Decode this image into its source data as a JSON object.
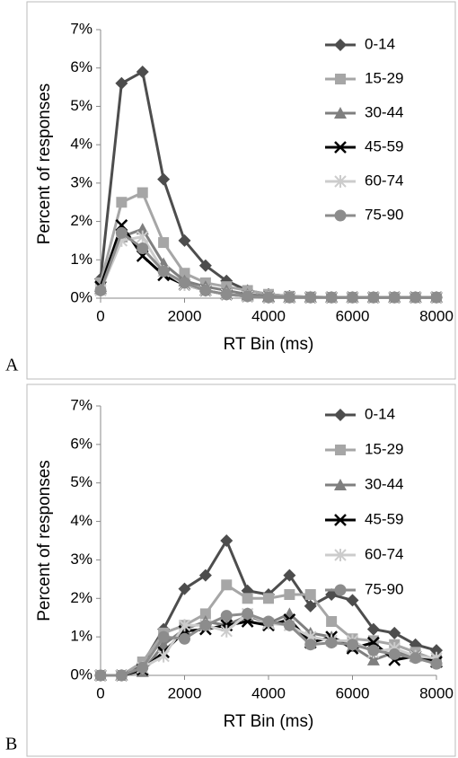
{
  "chart_data": [
    {
      "type": "line",
      "panel_label": "A",
      "x_label": "RT Bin (ms)",
      "y_label": "Percent of responses",
      "x": [
        0,
        500,
        1000,
        1500,
        2000,
        2500,
        3000,
        3500,
        4000,
        4500,
        5000,
        5500,
        6000,
        6500,
        7000,
        7500,
        8000
      ],
      "xlim": [
        0,
        8000
      ],
      "xticks": [
        0,
        2000,
        4000,
        6000,
        8000
      ],
      "ylim": [
        0,
        7
      ],
      "yticks": [
        {
          "value": 0,
          "label": "0%"
        },
        {
          "value": 1,
          "label": "1%"
        },
        {
          "value": 2,
          "label": "2%"
        },
        {
          "value": 3,
          "label": "3%"
        },
        {
          "value": 4,
          "label": "4%"
        },
        {
          "value": 5,
          "label": "5%"
        },
        {
          "value": 6,
          "label": "6%"
        },
        {
          "value": 7,
          "label": "7%"
        }
      ],
      "legend": "upper right",
      "series": [
        {
          "name": "0-14",
          "color": "#4d4d4d",
          "marker": "diamond",
          "values": [
            0.5,
            5.6,
            5.9,
            3.1,
            1.5,
            0.85,
            0.45,
            0.2,
            0.1,
            0.05,
            0.03,
            0.02,
            0.02,
            0.02,
            0.02,
            0.02,
            0.02
          ]
        },
        {
          "name": "15-29",
          "color": "#a6a6a6",
          "marker": "square",
          "values": [
            0.4,
            2.5,
            2.75,
            1.45,
            0.65,
            0.4,
            0.3,
            0.2,
            0.1,
            0.05,
            0.03,
            0.02,
            0.02,
            0.02,
            0.02,
            0.02,
            0.02
          ]
        },
        {
          "name": "30-44",
          "color": "#7f7f7f",
          "marker": "triangle",
          "values": [
            0.25,
            1.6,
            1.8,
            0.9,
            0.45,
            0.3,
            0.2,
            0.1,
            0.05,
            0.02,
            0.02,
            0.02,
            0.02,
            0.02,
            0.02,
            0.02,
            0.02
          ]
        },
        {
          "name": "45-59",
          "color": "#000000",
          "marker": "x",
          "values": [
            0.3,
            1.9,
            1.1,
            0.6,
            0.35,
            0.2,
            0.1,
            0.05,
            0.02,
            0.02,
            0.02,
            0.02,
            0.02,
            0.02,
            0.02,
            0.02,
            0.02
          ]
        },
        {
          "name": "60-74",
          "color": "#cccccc",
          "marker": "star",
          "values": [
            0.2,
            1.5,
            1.6,
            0.7,
            0.35,
            0.2,
            0.1,
            0.05,
            0.02,
            0.02,
            0.02,
            0.02,
            0.02,
            0.02,
            0.02,
            0.02,
            0.02
          ]
        },
        {
          "name": "75-90",
          "color": "#8c8c8c",
          "marker": "circle",
          "values": [
            0.2,
            1.7,
            1.3,
            0.7,
            0.4,
            0.2,
            0.1,
            0.05,
            0.02,
            0.02,
            0.02,
            0.02,
            0.02,
            0.02,
            0.02,
            0.02,
            0.02
          ]
        }
      ]
    },
    {
      "type": "line",
      "panel_label": "B",
      "x_label": "RT Bin (ms)",
      "y_label": "Percent of responses",
      "x": [
        0,
        500,
        1000,
        1500,
        2000,
        2500,
        3000,
        3500,
        4000,
        4500,
        5000,
        5500,
        6000,
        6500,
        7000,
        7500,
        8000
      ],
      "xlim": [
        0,
        8000
      ],
      "xticks": [
        0,
        2000,
        4000,
        6000,
        8000
      ],
      "ylim": [
        0,
        7
      ],
      "yticks": [
        {
          "value": 0,
          "label": "0%"
        },
        {
          "value": 1,
          "label": "1%"
        },
        {
          "value": 2,
          "label": "2%"
        },
        {
          "value": 3,
          "label": "3%"
        },
        {
          "value": 4,
          "label": "4%"
        },
        {
          "value": 5,
          "label": "5%"
        },
        {
          "value": 6,
          "label": "6%"
        },
        {
          "value": 7,
          "label": "7%"
        }
      ],
      "legend": "upper right",
      "series": [
        {
          "name": "0-14",
          "color": "#4d4d4d",
          "marker": "diamond",
          "values": [
            0,
            0,
            0.3,
            1.2,
            2.25,
            2.6,
            3.5,
            2.2,
            2.1,
            2.6,
            1.8,
            2.1,
            1.95,
            1.2,
            1.1,
            0.8,
            0.65
          ]
        },
        {
          "name": "15-29",
          "color": "#a6a6a6",
          "marker": "square",
          "values": [
            0,
            0,
            0.35,
            1.1,
            1.3,
            1.6,
            2.35,
            2.0,
            2.0,
            2.1,
            2.1,
            1.4,
            0.95,
            0.9,
            0.8,
            0.6,
            0.4
          ]
        },
        {
          "name": "30-44",
          "color": "#7f7f7f",
          "marker": "triangle",
          "values": [
            0,
            0,
            0.1,
            0.8,
            1.2,
            1.4,
            1.3,
            1.55,
            1.35,
            1.6,
            1.1,
            1.0,
            0.75,
            0.4,
            0.6,
            0.5,
            0.35
          ]
        },
        {
          "name": "45-59",
          "color": "#000000",
          "marker": "x",
          "values": [
            0,
            0,
            0.15,
            0.6,
            1.15,
            1.2,
            1.3,
            1.4,
            1.3,
            1.45,
            0.85,
            1.0,
            0.7,
            0.85,
            0.4,
            0.5,
            0.35
          ]
        },
        {
          "name": "60-74",
          "color": "#cccccc",
          "marker": "star",
          "values": [
            0,
            0,
            0.2,
            0.5,
            1.3,
            1.3,
            1.15,
            1.6,
            1.35,
            1.3,
            1.0,
            0.9,
            0.9,
            0.6,
            0.7,
            0.5,
            0.45
          ]
        },
        {
          "name": "75-90",
          "color": "#8c8c8c",
          "marker": "circle",
          "values": [
            0,
            0,
            0.2,
            1.0,
            0.95,
            1.3,
            1.55,
            1.6,
            1.4,
            1.3,
            0.8,
            0.85,
            0.8,
            0.65,
            0.55,
            0.45,
            0.3
          ]
        }
      ]
    }
  ]
}
